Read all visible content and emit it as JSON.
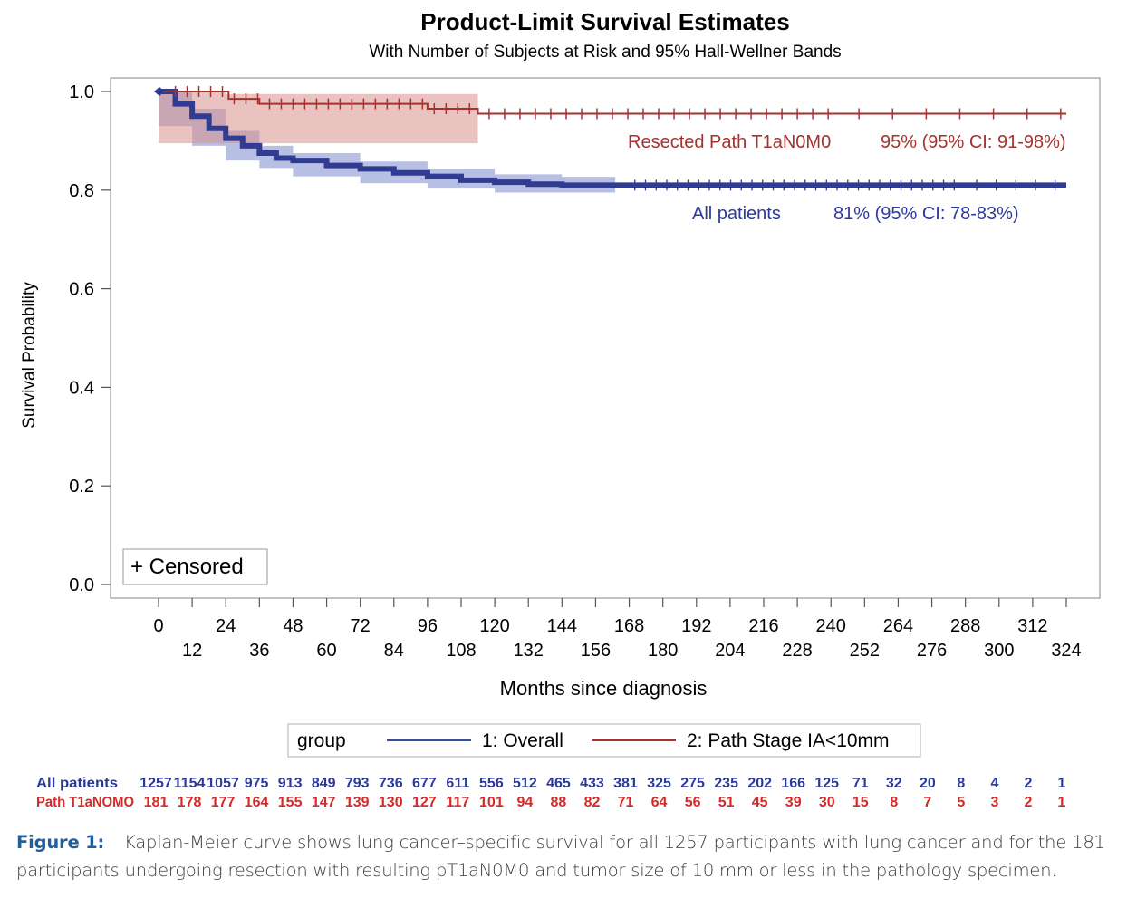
{
  "chart_data": {
    "type": "line",
    "title": "Product-Limit Survival Estimates",
    "subtitle": "With Number of Subjects at Risk and 95% Hall-Wellner Bands",
    "xlabel": "Months since diagnosis",
    "ylabel": "Survival Probability",
    "xlim": [
      0,
      324
    ],
    "ylim": [
      0,
      1.0
    ],
    "x_ticks_upper": [
      "0",
      "24",
      "48",
      "72",
      "96",
      "120",
      "144",
      "168",
      "192",
      "216",
      "240",
      "264",
      "288",
      "312"
    ],
    "x_ticks_lower": [
      "12",
      "36",
      "60",
      "84",
      "108",
      "132",
      "156",
      "180",
      "204",
      "228",
      "252",
      "276",
      "300",
      "324"
    ],
    "y_ticks": [
      "0.0",
      "0.2",
      "0.4",
      "0.6",
      "0.8",
      "1.0"
    ],
    "censored_label": "+ Censored",
    "legend": {
      "title": "group",
      "items": [
        {
          "label": "1: Overall",
          "color": "#3a4ea1"
        },
        {
          "label": "2: Path Stage IA<10mm",
          "color": "#a5322e"
        }
      ]
    },
    "series": [
      {
        "name": "1: Overall",
        "color": "#2f3c92",
        "band_color": "#7d8bd0",
        "x": [
          0,
          6,
          12,
          18,
          24,
          30,
          36,
          42,
          48,
          60,
          72,
          84,
          96,
          108,
          120,
          132,
          144,
          156,
          168,
          324
        ],
        "y": [
          1.0,
          0.975,
          0.95,
          0.925,
          0.905,
          0.89,
          0.875,
          0.865,
          0.86,
          0.85,
          0.843,
          0.835,
          0.828,
          0.82,
          0.816,
          0.812,
          0.81,
          0.81,
          0.81,
          0.81
        ],
        "band_x": [
          0,
          12,
          24,
          36,
          48,
          72,
          96,
          120,
          144,
          163
        ],
        "band_upper": [
          1.0,
          0.965,
          0.92,
          0.89,
          0.875,
          0.858,
          0.843,
          0.832,
          0.827,
          0.827
        ],
        "band_lower": [
          0.93,
          0.93,
          0.89,
          0.86,
          0.845,
          0.828,
          0.814,
          0.803,
          0.795,
          0.795
        ],
        "annotation": "All patients",
        "annotation_value": "81% (95% CI: 78-83%)"
      },
      {
        "name": "2: Path Stage IA<10mm",
        "color": "#a5322e",
        "band_color": "#d98f8c",
        "x": [
          0,
          24,
          25,
          36,
          96,
          114,
          324
        ],
        "y": [
          1.0,
          1.0,
          0.985,
          0.975,
          0.965,
          0.955,
          0.955
        ],
        "band_x": [
          0,
          24,
          114
        ],
        "band_upper": [
          1.0,
          0.995,
          0.985
        ],
        "band_lower": [
          0.895,
          0.895,
          0.895
        ],
        "annotation": "Resected Path T1aN0M0",
        "annotation_value": "95% (95% CI: 91-98%)"
      }
    ],
    "at_risk": {
      "rows": [
        {
          "label": "All patients",
          "color": "#2b3a9a",
          "values": [
            "1257",
            "1154",
            "1057",
            "975",
            "913",
            "849",
            "793",
            "736",
            "677",
            "611",
            "556",
            "512",
            "465",
            "433",
            "381",
            "325",
            "275",
            "235",
            "202",
            "166",
            "125",
            "71",
            "32",
            "20",
            "8",
            "4",
            "2",
            "1"
          ]
        },
        {
          "label": "Path T1aNOMO",
          "color": "#d42a2a",
          "values": [
            "181",
            "178",
            "177",
            "164",
            "155",
            "147",
            "139",
            "130",
            "127",
            "117",
            "101",
            "94",
            "88",
            "82",
            "71",
            "64",
            "56",
            "51",
            "45",
            "39",
            "30",
            "15",
            "8",
            "7",
            "5",
            "3",
            "2",
            "1"
          ]
        }
      ]
    }
  },
  "caption": {
    "label": "Figure 1:",
    "text": "Kaplan-Meier curve shows lung cancer–specific survival for all 1257 participants with lung cancer and for the 181 participants undergoing resection with resulting pT1aN0M0 and tumor size of 10 mm or less in the pathology specimen."
  }
}
